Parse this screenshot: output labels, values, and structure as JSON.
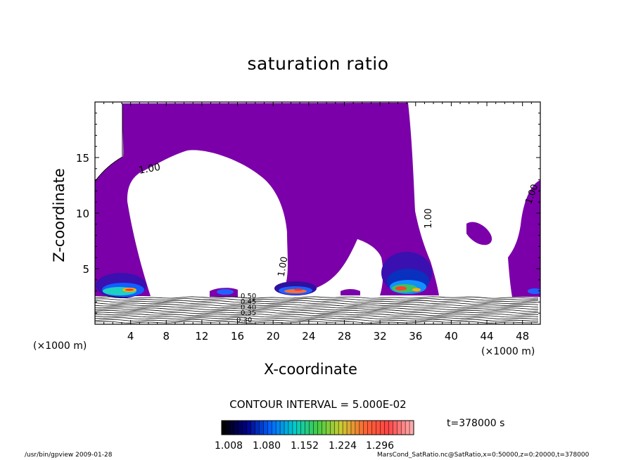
{
  "chart_data": {
    "type": "heatmap",
    "title": "saturation ratio",
    "xlabel": "X-coordinate",
    "ylabel": "Z-coordinate",
    "x_unit": "(×1000 m)",
    "xlim": [
      0,
      50
    ],
    "ylim": [
      0,
      20
    ],
    "x_ticks": [
      4,
      8,
      12,
      16,
      20,
      24,
      28,
      32,
      36,
      40,
      44,
      48
    ],
    "y_ticks": [
      5,
      10,
      15
    ],
    "contour_interval_label": "CONTOUR INTERVAL = 5.000E-02",
    "colorbar_ticks": [
      "1.008",
      "1.080",
      "1.152",
      "1.224",
      "1.296"
    ],
    "contour_labels": [
      "1.00",
      "1.00",
      "1.00",
      "1.00",
      "0.30",
      "0.35",
      "0.40",
      "0.45",
      "0.50"
    ],
    "time_label": "t=378000 s",
    "colors": {
      "fill": "#7a00a8",
      "colorbar": [
        "#000000",
        "#000088",
        "#0066ff",
        "#00cccc",
        "#44cc44",
        "#cccc33",
        "#ff6633",
        "#ff4444",
        "#ffaaaa"
      ]
    }
  },
  "footer": {
    "left": "/usr/bin/gpview   2009-01-28",
    "right": "MarsCond_SatRatio.nc@SatRatio,x=0:50000,z=0:20000,t=378000"
  }
}
